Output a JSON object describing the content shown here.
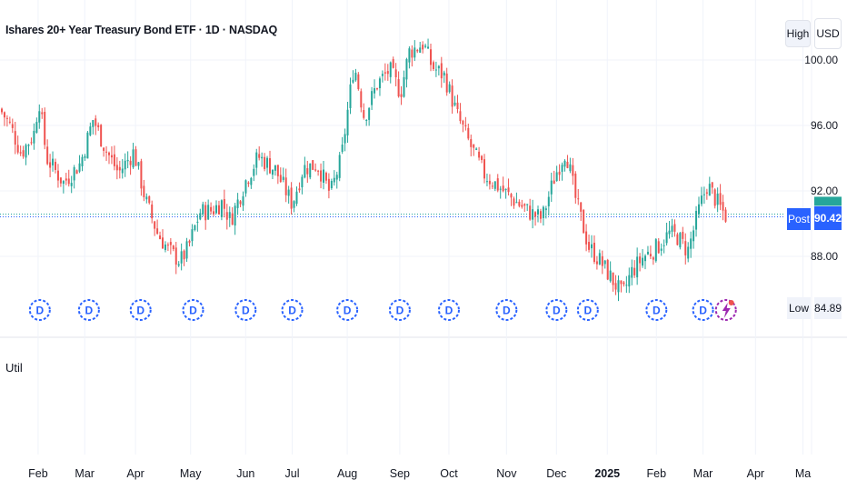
{
  "header": {
    "title": "Ishares 20+ Year Treasury Bond ETF · 1D · NASDAQ",
    "high_label": "High",
    "currency": "USD"
  },
  "price_labels": {
    "post_label": "Post",
    "post_value": "90.42",
    "low_label": "Low",
    "low_value": "84.89"
  },
  "indicator": {
    "label": "Util"
  },
  "colors": {
    "up": "#26a69a",
    "down": "#ef5350",
    "accent": "#2962ff",
    "dividend_marker": "#2962ff",
    "split_marker": "#9c27b0",
    "grid": "#f0f3fa"
  },
  "chart_data": {
    "type": "candlestick",
    "y_ticks": [
      88,
      92,
      96,
      100
    ],
    "y_tick_labels": [
      "88.00",
      "92.00",
      "96.00",
      "100.00"
    ],
    "ylim": [
      84,
      102
    ],
    "x_labels": [
      {
        "label": "Feb",
        "x": 0.045
      },
      {
        "label": "Mar",
        "x": 0.1
      },
      {
        "label": "Apr",
        "x": 0.16
      },
      {
        "label": "May",
        "x": 0.225
      },
      {
        "label": "Jun",
        "x": 0.29
      },
      {
        "label": "Jul",
        "x": 0.345
      },
      {
        "label": "Aug",
        "x": 0.41
      },
      {
        "label": "Sep",
        "x": 0.472
      },
      {
        "label": "Oct",
        "x": 0.53
      },
      {
        "label": "Nov",
        "x": 0.598
      },
      {
        "label": "Dec",
        "x": 0.657
      },
      {
        "label": "2025",
        "x": 0.717,
        "bold": true
      },
      {
        "label": "Feb",
        "x": 0.775
      },
      {
        "label": "Mar",
        "x": 0.83
      },
      {
        "label": "Apr",
        "x": 0.892
      },
      {
        "label": "Ma",
        "x": 0.948
      }
    ],
    "close_path": [
      [
        0.0,
        97.0
      ],
      [
        0.012,
        96.0
      ],
      [
        0.025,
        94.3
      ],
      [
        0.04,
        95.5
      ],
      [
        0.046,
        97.6
      ],
      [
        0.055,
        94.0
      ],
      [
        0.075,
        92.5
      ],
      [
        0.095,
        93.7
      ],
      [
        0.11,
        96.4
      ],
      [
        0.125,
        94.5
      ],
      [
        0.14,
        93.1
      ],
      [
        0.158,
        94.4
      ],
      [
        0.172,
        91.4
      ],
      [
        0.186,
        89.4
      ],
      [
        0.2,
        88.3
      ],
      [
        0.213,
        87.7
      ],
      [
        0.222,
        88.5
      ],
      [
        0.236,
        90.7
      ],
      [
        0.25,
        90.8
      ],
      [
        0.262,
        91.3
      ],
      [
        0.272,
        90.2
      ],
      [
        0.29,
        92.6
      ],
      [
        0.305,
        94.1
      ],
      [
        0.325,
        93.3
      ],
      [
        0.345,
        91.2
      ],
      [
        0.358,
        93.4
      ],
      [
        0.375,
        93.6
      ],
      [
        0.39,
        91.8
      ],
      [
        0.403,
        94.0
      ],
      [
        0.418,
        99.8
      ],
      [
        0.43,
        96.5
      ],
      [
        0.445,
        98.5
      ],
      [
        0.46,
        99.4
      ],
      [
        0.473,
        98.0
      ],
      [
        0.483,
        100.5
      ],
      [
        0.5,
        101.0
      ],
      [
        0.51,
        99.6
      ],
      [
        0.525,
        99.0
      ],
      [
        0.54,
        96.6
      ],
      [
        0.555,
        94.8
      ],
      [
        0.572,
        93.0
      ],
      [
        0.59,
        92.2
      ],
      [
        0.605,
        91.5
      ],
      [
        0.625,
        90.7
      ],
      [
        0.64,
        90.3
      ],
      [
        0.655,
        92.9
      ],
      [
        0.668,
        94.5
      ],
      [
        0.68,
        91.4
      ],
      [
        0.695,
        88.6
      ],
      [
        0.71,
        87.6
      ],
      [
        0.725,
        86.4
      ],
      [
        0.735,
        85.6
      ],
      [
        0.745,
        87.0
      ],
      [
        0.76,
        88.0
      ],
      [
        0.775,
        88.5
      ],
      [
        0.79,
        89.4
      ],
      [
        0.8,
        89.2
      ],
      [
        0.812,
        88.3
      ],
      [
        0.826,
        91.0
      ],
      [
        0.835,
        92.4
      ],
      [
        0.85,
        91.0
      ],
      [
        0.858,
        90.4
      ]
    ],
    "dividend_markers_x": [
      0.047,
      0.105,
      0.166,
      0.228,
      0.29,
      0.345,
      0.41,
      0.472,
      0.53,
      0.598,
      0.657,
      0.694,
      0.775,
      0.83
    ],
    "split_marker_x": 0.857,
    "post_price": 90.42,
    "low_price": 84.89
  }
}
